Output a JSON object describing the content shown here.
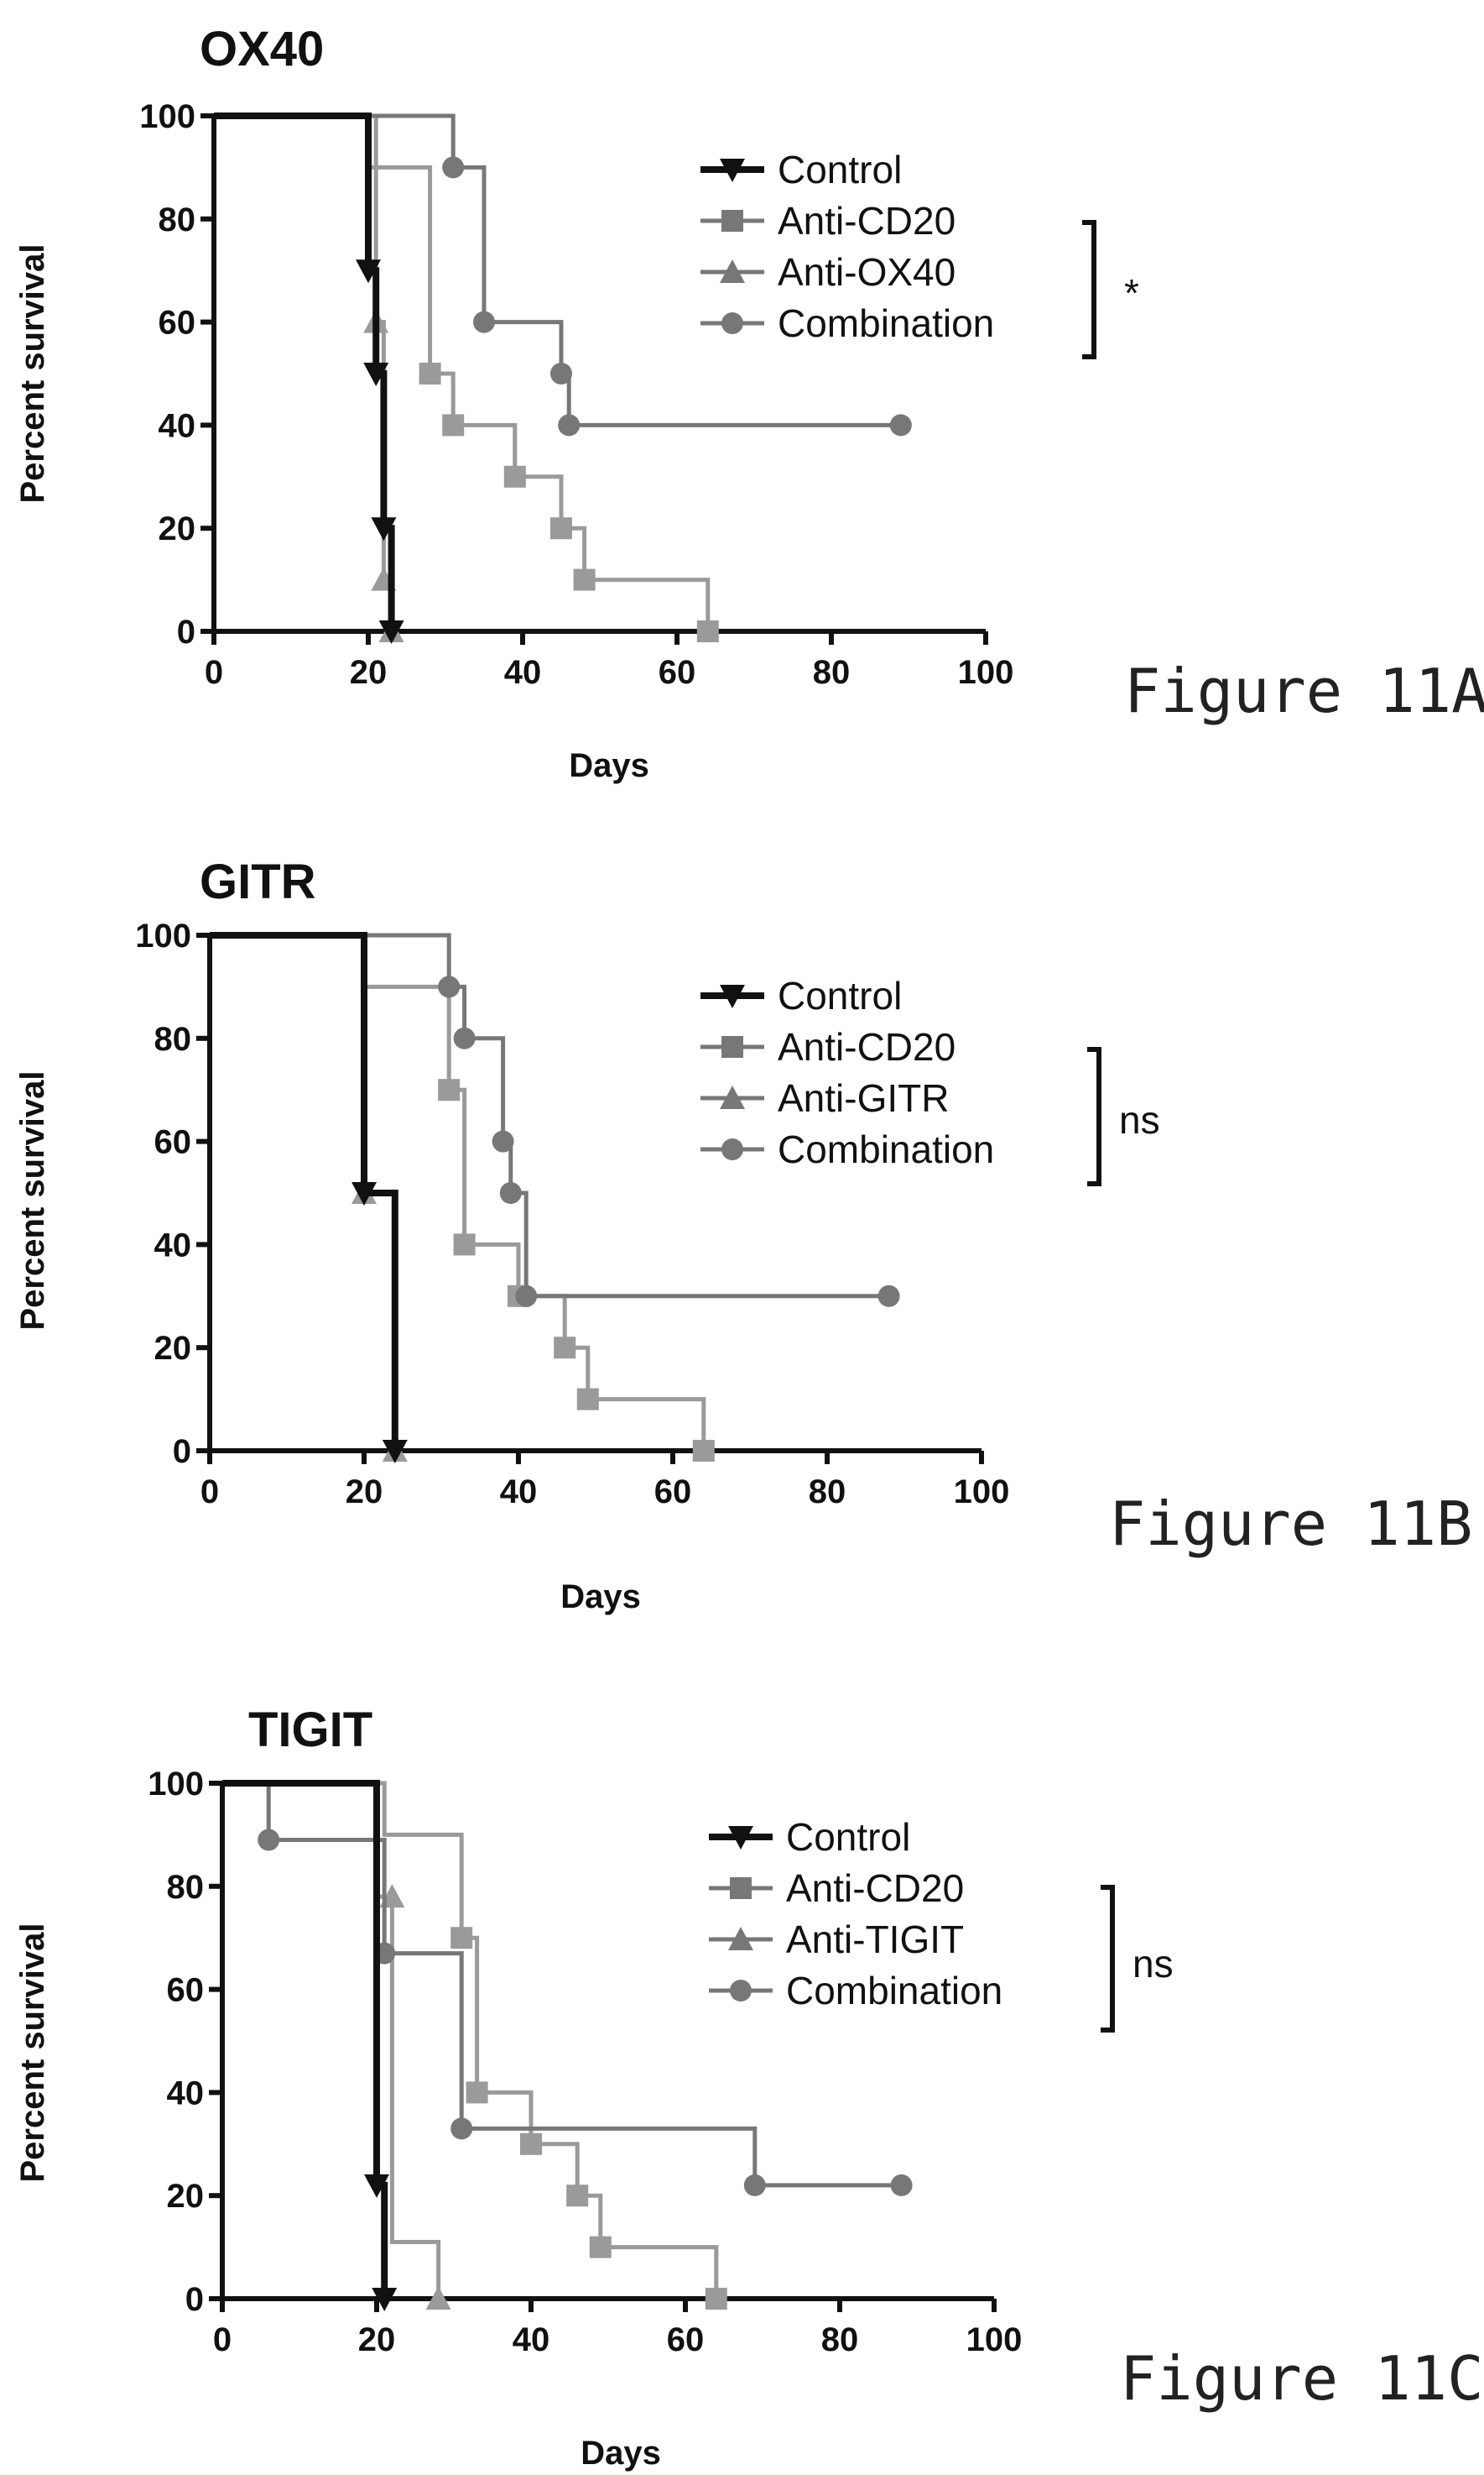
{
  "chart_data": [
    {
      "type": "line",
      "title": "OX40",
      "caption": "Figure 11A",
      "xlabel": "Days",
      "ylabel": "Percent survival",
      "xlim": [
        0,
        100
      ],
      "ylim": [
        0,
        100
      ],
      "xticks": [
        "0",
        "20",
        "40",
        "60",
        "80",
        "100"
      ],
      "yticks": [
        "0",
        "20",
        "40",
        "60",
        "80",
        "100"
      ],
      "legend_position": "top-right",
      "significance": "*",
      "grid": false,
      "series": [
        {
          "name": "Control",
          "color": "#111111",
          "marker": "triangle-down",
          "width": 8,
          "steps": [
            [
              0,
              100
            ],
            [
              20,
              100
            ],
            [
              20,
              70
            ],
            [
              21,
              70
            ],
            [
              21,
              50
            ],
            [
              22,
              50
            ],
            [
              22,
              20
            ],
            [
              23,
              20
            ],
            [
              23,
              0
            ]
          ],
          "markers": [
            [
              20,
              70
            ],
            [
              21,
              50
            ],
            [
              22,
              20
            ],
            [
              23,
              0
            ]
          ]
        },
        {
          "name": "Anti-CD20",
          "color": "#9a9a9a",
          "marker": "square",
          "width": 5,
          "steps": [
            [
              0,
              100
            ],
            [
              20,
              100
            ],
            [
              20,
              90
            ],
            [
              28,
              90
            ],
            [
              28,
              50
            ],
            [
              31,
              50
            ],
            [
              31,
              40
            ],
            [
              39,
              40
            ],
            [
              39,
              30
            ],
            [
              45,
              30
            ],
            [
              45,
              20
            ],
            [
              48,
              20
            ],
            [
              48,
              10
            ],
            [
              64,
              10
            ],
            [
              64,
              0
            ]
          ],
          "markers": [
            [
              28,
              50
            ],
            [
              31,
              40
            ],
            [
              39,
              30
            ],
            [
              45,
              20
            ],
            [
              48,
              10
            ],
            [
              64,
              0
            ]
          ]
        },
        {
          "name": "Anti-OX40",
          "color": "#9a9a9a",
          "marker": "triangle-up",
          "width": 5,
          "steps": [
            [
              0,
              100
            ],
            [
              21,
              100
            ],
            [
              21,
              60
            ],
            [
              22,
              60
            ],
            [
              22,
              10
            ],
            [
              23,
              10
            ],
            [
              23,
              0
            ]
          ],
          "markers": [
            [
              21,
              60
            ],
            [
              22,
              10
            ],
            [
              23,
              0
            ]
          ]
        },
        {
          "name": "Combination",
          "color": "#777777",
          "marker": "circle",
          "width": 5,
          "steps": [
            [
              0,
              100
            ],
            [
              31,
              100
            ],
            [
              31,
              90
            ],
            [
              35,
              90
            ],
            [
              35,
              60
            ],
            [
              45,
              60
            ],
            [
              45,
              50
            ],
            [
              46,
              50
            ],
            [
              46,
              40
            ],
            [
              89,
              40
            ]
          ],
          "markers": [
            [
              31,
              90
            ],
            [
              35,
              60
            ],
            [
              45,
              50
            ],
            [
              46,
              40
            ],
            [
              89,
              40
            ]
          ]
        }
      ]
    },
    {
      "type": "line",
      "title": "GITR",
      "caption": "Figure 11B",
      "xlabel": "Days",
      "ylabel": "Percent survival",
      "xlim": [
        0,
        100
      ],
      "ylim": [
        0,
        100
      ],
      "xticks": [
        "0",
        "20",
        "40",
        "60",
        "80",
        "100"
      ],
      "yticks": [
        "0",
        "20",
        "40",
        "60",
        "80",
        "100"
      ],
      "legend_position": "top-right",
      "significance": "ns",
      "grid": false,
      "series": [
        {
          "name": "Control",
          "color": "#111111",
          "marker": "triangle-down",
          "width": 8,
          "steps": [
            [
              0,
              100
            ],
            [
              20,
              100
            ],
            [
              20,
              50
            ],
            [
              24,
              50
            ],
            [
              24,
              0
            ]
          ],
          "markers": [
            [
              20,
              50
            ],
            [
              24,
              0
            ]
          ]
        },
        {
          "name": "Anti-CD20",
          "color": "#9a9a9a",
          "marker": "square",
          "width": 5,
          "steps": [
            [
              0,
              100
            ],
            [
              20,
              100
            ],
            [
              20,
              90
            ],
            [
              31,
              90
            ],
            [
              31,
              70
            ],
            [
              33,
              70
            ],
            [
              33,
              40
            ],
            [
              40,
              40
            ],
            [
              40,
              30
            ],
            [
              46,
              30
            ],
            [
              46,
              20
            ],
            [
              49,
              20
            ],
            [
              49,
              10
            ],
            [
              64,
              10
            ],
            [
              64,
              0
            ]
          ],
          "markers": [
            [
              31,
              70
            ],
            [
              33,
              40
            ],
            [
              40,
              30
            ],
            [
              46,
              20
            ],
            [
              49,
              10
            ],
            [
              64,
              0
            ]
          ]
        },
        {
          "name": "Anti-GITR",
          "color": "#9a9a9a",
          "marker": "triangle-up",
          "width": 5,
          "steps": [
            [
              0,
              100
            ],
            [
              20,
              100
            ],
            [
              20,
              50
            ],
            [
              24,
              50
            ],
            [
              24,
              0
            ]
          ],
          "markers": [
            [
              20,
              50
            ],
            [
              24,
              0
            ]
          ]
        },
        {
          "name": "Combination",
          "color": "#777777",
          "marker": "circle",
          "width": 5,
          "steps": [
            [
              0,
              100
            ],
            [
              31,
              100
            ],
            [
              31,
              90
            ],
            [
              33,
              90
            ],
            [
              33,
              80
            ],
            [
              38,
              80
            ],
            [
              38,
              60
            ],
            [
              39,
              60
            ],
            [
              39,
              50
            ],
            [
              41,
              50
            ],
            [
              41,
              30
            ],
            [
              88,
              30
            ]
          ],
          "markers": [
            [
              31,
              90
            ],
            [
              33,
              80
            ],
            [
              38,
              60
            ],
            [
              39,
              50
            ],
            [
              41,
              30
            ],
            [
              88,
              30
            ]
          ]
        }
      ]
    },
    {
      "type": "line",
      "title": "TIGIT",
      "caption": "Figure 11C",
      "xlabel": "Days",
      "ylabel": "Percent survival",
      "xlim": [
        0,
        100
      ],
      "ylim": [
        0,
        100
      ],
      "xticks": [
        "0",
        "20",
        "40",
        "60",
        "80",
        "100"
      ],
      "yticks": [
        "0",
        "20",
        "40",
        "60",
        "80",
        "100"
      ],
      "legend_position": "top-right",
      "significance": "ns",
      "grid": false,
      "series": [
        {
          "name": "Control",
          "color": "#111111",
          "marker": "triangle-down",
          "width": 8,
          "steps": [
            [
              0,
              100
            ],
            [
              20,
              100
            ],
            [
              20,
              22
            ],
            [
              21,
              22
            ],
            [
              21,
              0
            ]
          ],
          "markers": [
            [
              20,
              22
            ],
            [
              21,
              0
            ]
          ]
        },
        {
          "name": "Anti-CD20",
          "color": "#9a9a9a",
          "marker": "square",
          "width": 5,
          "steps": [
            [
              0,
              100
            ],
            [
              21,
              100
            ],
            [
              21,
              90
            ],
            [
              31,
              90
            ],
            [
              31,
              70
            ],
            [
              33,
              70
            ],
            [
              33,
              40
            ],
            [
              40,
              40
            ],
            [
              40,
              30
            ],
            [
              46,
              30
            ],
            [
              46,
              20
            ],
            [
              49,
              20
            ],
            [
              49,
              10
            ],
            [
              64,
              10
            ],
            [
              64,
              0
            ]
          ],
          "markers": [
            [
              31,
              70
            ],
            [
              33,
              40
            ],
            [
              40,
              30
            ],
            [
              46,
              20
            ],
            [
              49,
              10
            ],
            [
              64,
              0
            ]
          ]
        },
        {
          "name": "Anti-TIGIT",
          "color": "#9a9a9a",
          "marker": "triangle-up",
          "width": 5,
          "steps": [
            [
              0,
              100
            ],
            [
              20,
              100
            ],
            [
              20,
              78
            ],
            [
              22,
              78
            ],
            [
              22,
              11
            ],
            [
              28,
              11
            ],
            [
              28,
              0
            ]
          ],
          "markers": [
            [
              22,
              78
            ],
            [
              28,
              0
            ]
          ]
        },
        {
          "name": "Combination",
          "color": "#777777",
          "marker": "circle",
          "width": 5,
          "steps": [
            [
              0,
              100
            ],
            [
              6,
              100
            ],
            [
              6,
              89
            ],
            [
              21,
              89
            ],
            [
              21,
              67
            ],
            [
              31,
              67
            ],
            [
              31,
              33
            ],
            [
              69,
              33
            ],
            [
              69,
              22
            ],
            [
              88,
              22
            ]
          ],
          "markers": [
            [
              6,
              89
            ],
            [
              21,
              67
            ],
            [
              31,
              33
            ],
            [
              69,
              22
            ],
            [
              88,
              22
            ]
          ]
        }
      ]
    }
  ]
}
